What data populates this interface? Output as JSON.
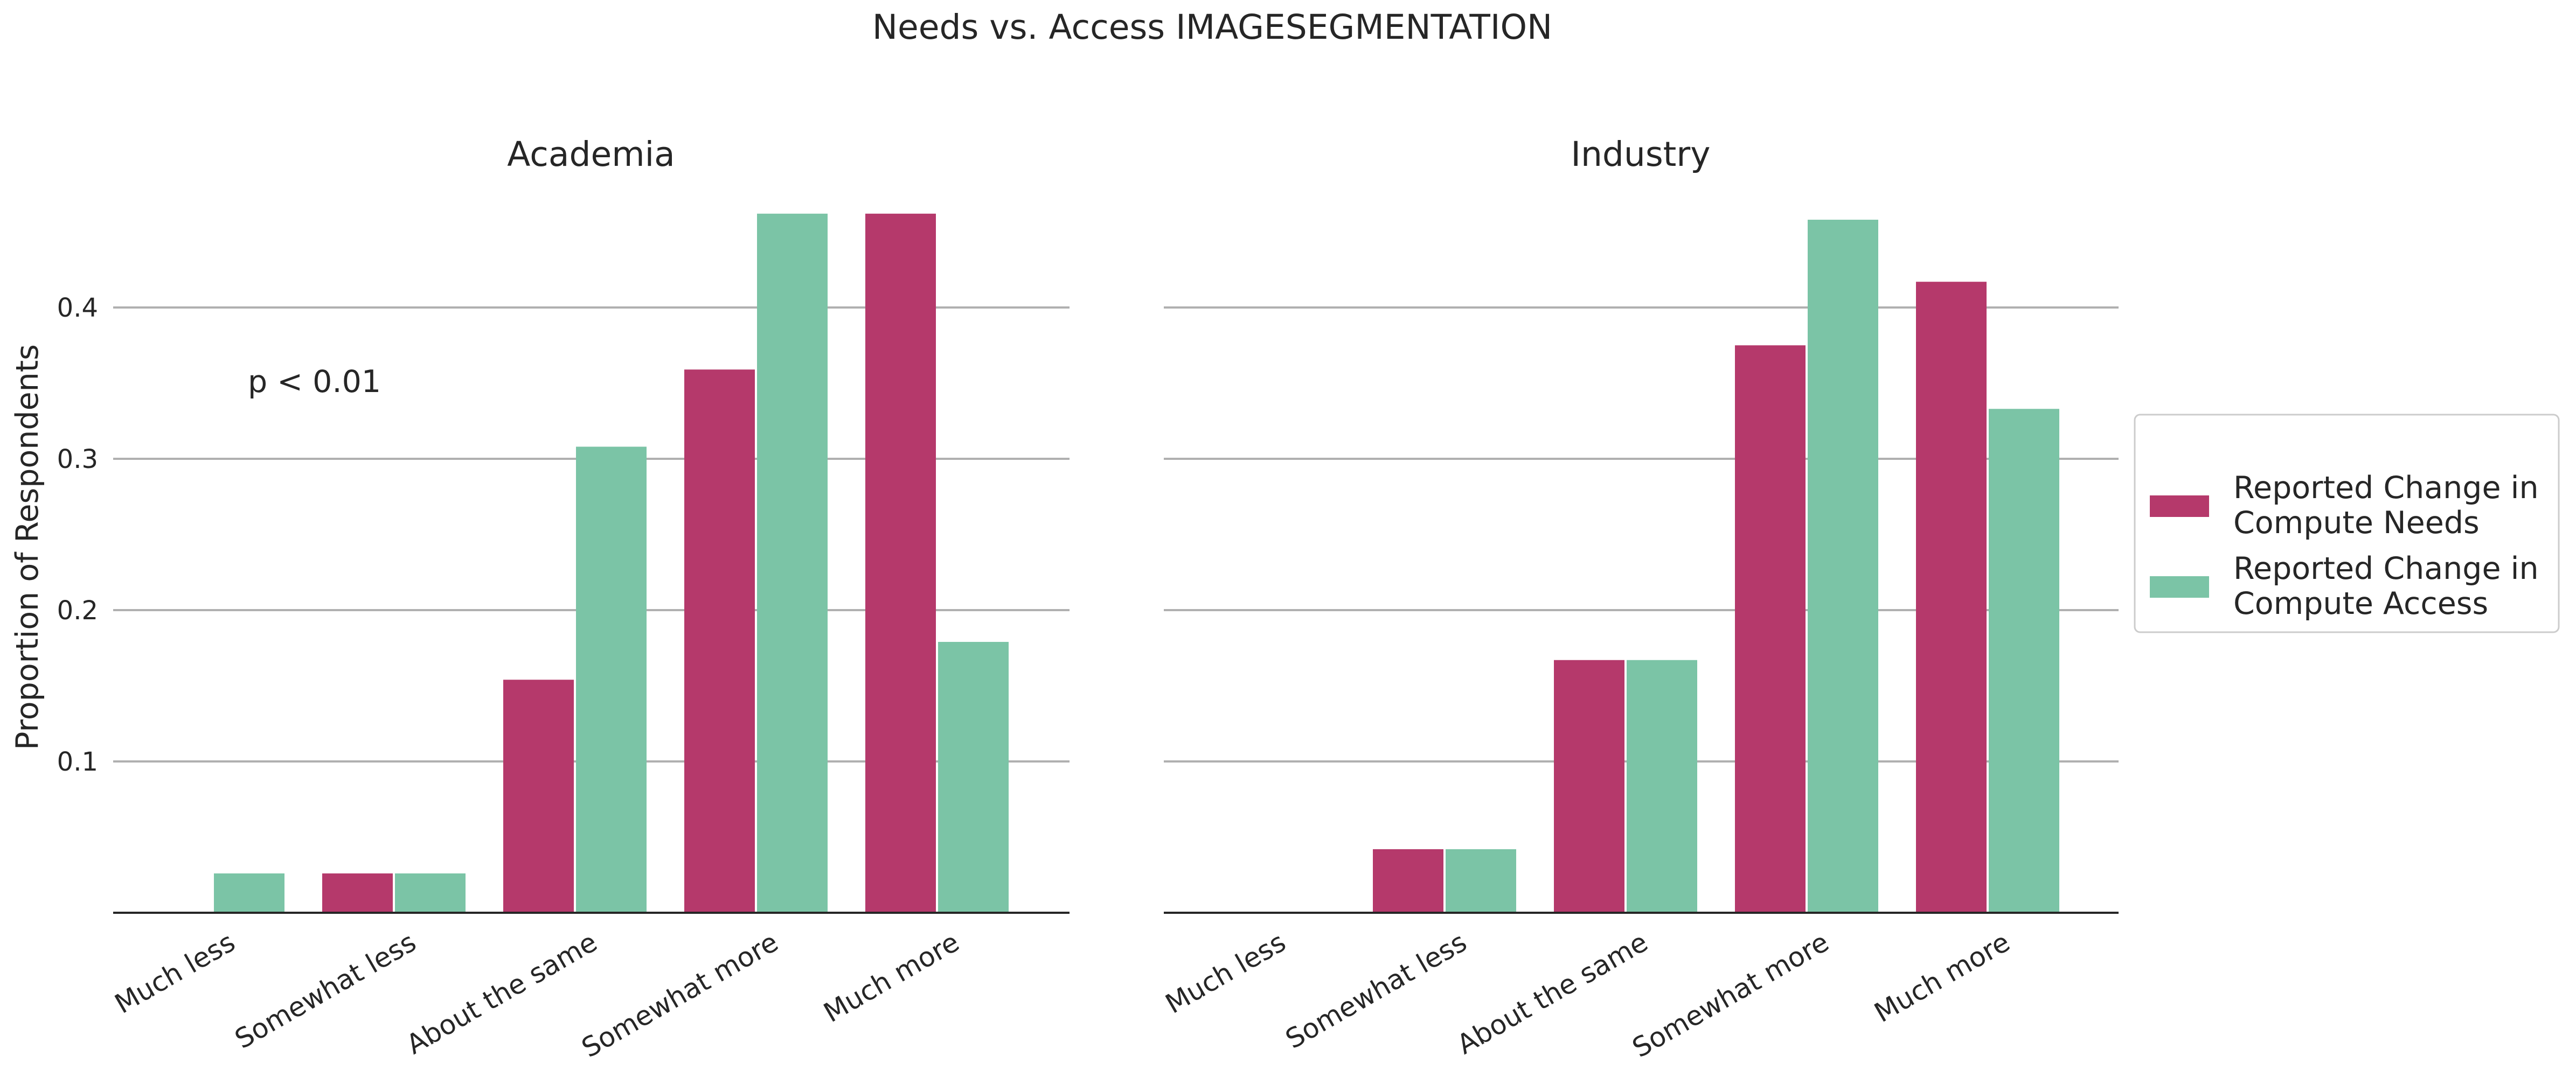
{
  "chart_data": {
    "type": "bar",
    "title": "Needs vs. Access IMAGESEGMENTATION",
    "ylabel": "Proportion of Respondents",
    "ylim": [
      0,
      0.46
    ],
    "yticks": [
      0.1,
      0.2,
      0.3,
      0.4
    ],
    "ytick_labels": [
      "0.1",
      "0.2",
      "0.3",
      "0.4"
    ],
    "grid": "horizontal",
    "legend_position": "right",
    "categories": [
      "Much less",
      "Somewhat less",
      "About the same",
      "Somewhat more",
      "Much more"
    ],
    "series_names": [
      "Reported Change in Compute Needs",
      "Reported Change in Compute Access"
    ],
    "series_legend_lines": [
      [
        "Reported Change in",
        "Compute Needs"
      ],
      [
        "Reported Change in",
        "Compute Access"
      ]
    ],
    "colors": [
      "#b5396b",
      "#7bc4a6"
    ],
    "panels": [
      {
        "title": "Academia",
        "annotation": "p < 0.01",
        "series": [
          {
            "name": "Reported Change in Compute Needs",
            "values": [
              0.0,
              0.026,
              0.154,
              0.359,
              0.462
            ]
          },
          {
            "name": "Reported Change in Compute Access",
            "values": [
              0.026,
              0.026,
              0.308,
              0.462,
              0.179
            ]
          }
        ]
      },
      {
        "title": "Industry",
        "annotation": "",
        "series": [
          {
            "name": "Reported Change in Compute Needs",
            "values": [
              0.0,
              0.042,
              0.167,
              0.375,
              0.417
            ]
          },
          {
            "name": "Reported Change in Compute Access",
            "values": [
              0.0,
              0.042,
              0.167,
              0.458,
              0.333
            ]
          }
        ]
      }
    ]
  }
}
